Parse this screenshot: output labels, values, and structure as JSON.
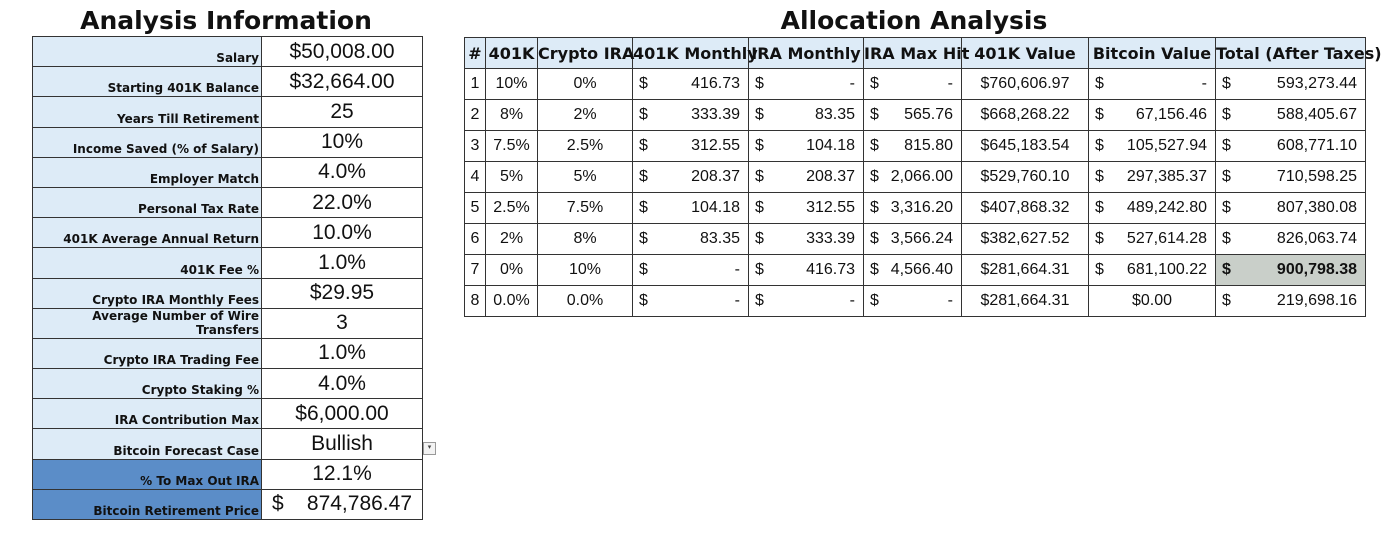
{
  "left_title": "Analysis Information",
  "right_title": "Allocation Analysis",
  "info_rows": [
    {
      "label": "Salary",
      "value": "$50,008.00"
    },
    {
      "label": "Starting 401K Balance",
      "value": "$32,664.00"
    },
    {
      "label": "Years Till Retirement",
      "value": "25"
    },
    {
      "label": "Income Saved (% of Salary)",
      "value": "10%"
    },
    {
      "label": "Employer Match",
      "value": "4.0%"
    },
    {
      "label": "Personal Tax Rate",
      "value": "22.0%"
    },
    {
      "label": "401K Average Annual Return",
      "value": "10.0%"
    },
    {
      "label": "401K Fee %",
      "value": "1.0%"
    },
    {
      "label": "Crypto IRA Monthly Fees",
      "value": "$29.95"
    },
    {
      "label": "Average Number of Wire Transfers",
      "value": "3"
    },
    {
      "label": "Crypto IRA Trading Fee",
      "value": "1.0%"
    },
    {
      "label": "Crypto Staking %",
      "value": "4.0%"
    },
    {
      "label": "IRA Contribution Max",
      "value": "$6,000.00"
    },
    {
      "label": "Bitcoin Forecast Case",
      "value": "Bullish"
    },
    {
      "label": "% To Max Out IRA",
      "value": "12.1%"
    },
    {
      "label": "Bitcoin Retirement Price",
      "sym": "$",
      "amount": "874,786.47"
    }
  ],
  "dropdown_icon": "▾",
  "headers": [
    "#",
    "401K",
    "Crypto IRA",
    "401K Monthly",
    "IRA Monthly",
    "IRA Max Hit",
    "401K Value",
    "Bitcoin Value",
    "Total (After Taxes)"
  ],
  "rows": [
    {
      "n": "1",
      "k401": "10%",
      "ira": "0%",
      "m401": "416.73",
      "mira": "-",
      "maxhit": "-",
      "v401": "$760,606.97",
      "btc_sym": "$",
      "btc": "-",
      "total": "593,273.44"
    },
    {
      "n": "2",
      "k401": "8%",
      "ira": "2%",
      "m401": "333.39",
      "mira": "83.35",
      "maxhit": "565.76",
      "v401": "$668,268.22",
      "btc_sym": "$",
      "btc": "67,156.46",
      "total": "588,405.67"
    },
    {
      "n": "3",
      "k401": "7.5%",
      "ira": "2.5%",
      "m401": "312.55",
      "mira": "104.18",
      "maxhit": "815.80",
      "v401": "$645,183.54",
      "btc_sym": "$",
      "btc": "105,527.94",
      "total": "608,771.10"
    },
    {
      "n": "4",
      "k401": "5%",
      "ira": "5%",
      "m401": "208.37",
      "mira": "208.37",
      "maxhit": "2,066.00",
      "v401": "$529,760.10",
      "btc_sym": "$",
      "btc": "297,385.37",
      "total": "710,598.25"
    },
    {
      "n": "5",
      "k401": "2.5%",
      "ira": "7.5%",
      "m401": "104.18",
      "mira": "312.55",
      "maxhit": "3,316.20",
      "v401": "$407,868.32",
      "btc_sym": "$",
      "btc": "489,242.80",
      "total": "807,380.08"
    },
    {
      "n": "6",
      "k401": "2%",
      "ira": "8%",
      "m401": "83.35",
      "mira": "333.39",
      "maxhit": "3,566.24",
      "v401": "$382,627.52",
      "btc_sym": "$",
      "btc": "527,614.28",
      "total": "826,063.74"
    },
    {
      "n": "7",
      "k401": "0%",
      "ira": "10%",
      "m401": "-",
      "mira": "416.73",
      "maxhit": "4,566.40",
      "v401": "$281,664.31",
      "btc_sym": "$",
      "btc": "681,100.22",
      "total": "900,798.38"
    },
    {
      "n": "8",
      "k401": "0.0%",
      "ira": "0.0%",
      "m401": "-",
      "mira": "-",
      "maxhit": "-",
      "v401": "$281,664.31",
      "btc_sym": "",
      "btc": "$0.00",
      "total": "219,698.16"
    }
  ],
  "currency_symbol": "$",
  "highlight_color": "#c9cfc9",
  "header_color": "#ddebf7",
  "dark_label_color": "#5b8dc8"
}
